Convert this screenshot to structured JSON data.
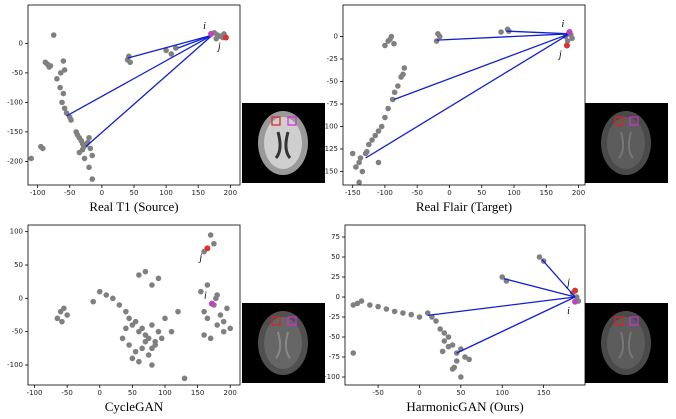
{
  "chart_data": [
    {
      "type": "scatter",
      "title": "Real T1 (Source)",
      "color": "#808080",
      "xlim": [
        -115,
        215
      ],
      "ylim": [
        -240,
        65
      ],
      "xticks": [
        -100,
        -50,
        0,
        50,
        100,
        150,
        200
      ],
      "yticks": [
        0,
        -50,
        -100,
        -150,
        -200
      ],
      "x": [
        -75,
        -88,
        -85,
        -82,
        -80,
        -70,
        -65,
        -60,
        -62,
        -58,
        -55,
        -50,
        -48,
        -40,
        -35,
        -32,
        -30,
        -28,
        -25,
        -22,
        -30,
        -35,
        -20,
        -18,
        -15,
        -38,
        -27,
        -110,
        -95,
        -92,
        -15,
        -20,
        40,
        42,
        44,
        100,
        108,
        115,
        175,
        180,
        185,
        190,
        178,
        188,
        -60,
        -58,
        -64
      ],
      "y": [
        14,
        -32,
        -35,
        -40,
        -38,
        -60,
        -75,
        -85,
        -100,
        -110,
        -118,
        -125,
        -130,
        -150,
        -160,
        -165,
        -170,
        -175,
        -172,
        -168,
        -180,
        -185,
        -160,
        -178,
        -190,
        -155,
        -195,
        -195,
        -175,
        -178,
        -230,
        -210,
        -28,
        -22,
        -32,
        -12,
        -18,
        -8,
        18,
        14,
        12,
        16,
        8,
        10,
        -30,
        -45,
        -50
      ],
      "links": [
        {
          "x": [
            172,
            40
          ],
          "y": [
            14,
            -25
          ]
        },
        {
          "x": [
            172,
            -55
          ],
          "y": [
            14,
            -123
          ]
        },
        {
          "x": [
            172,
            -25
          ],
          "y": [
            14,
            -175
          ]
        },
        {
          "x": [
            172,
            118
          ],
          "y": [
            14,
            -8
          ]
        }
      ],
      "highlights": [
        {
          "label": "i",
          "x": 170,
          "y": 16,
          "color": "#c040c0"
        },
        {
          "label": "j",
          "x": 193,
          "y": 10,
          "color": "#e03030"
        }
      ]
    },
    {
      "type": "scatter",
      "title": "Real Flair (Target)",
      "color": "#808080",
      "xlim": [
        -165,
        210
      ],
      "ylim": [
        -165,
        35
      ],
      "xticks": [
        -150,
        -100,
        -50,
        0,
        50,
        100,
        150,
        200
      ],
      "yticks": [
        0,
        -25,
        -50,
        -75,
        -100,
        -125,
        -150
      ],
      "x": [
        -100,
        -95,
        -90,
        -92,
        -86,
        -20,
        -15,
        -18,
        80,
        90,
        92,
        -70,
        -72,
        -75,
        -80,
        -85,
        -88,
        -95,
        -100,
        -105,
        -110,
        -115,
        -120,
        -125,
        -130,
        -140,
        -135,
        -145,
        -150,
        -138,
        -128,
        -110,
        -140,
        180,
        185,
        188,
        190,
        183
      ],
      "y": [
        -10,
        -5,
        0,
        -3,
        -8,
        -5,
        0,
        3,
        5,
        8,
        6,
        -35,
        -42,
        -45,
        -55,
        -62,
        -70,
        -80,
        -90,
        -100,
        -105,
        -110,
        -115,
        -120,
        -130,
        -140,
        -150,
        -145,
        -130,
        -135,
        -128,
        -140,
        -162,
        0,
        4,
        2,
        -2,
        -5
      ],
      "links": [
        {
          "x": [
            186,
            -20
          ],
          "y": [
            3,
            -4
          ]
        },
        {
          "x": [
            186,
            88
          ],
          "y": [
            3,
            6
          ]
        },
        {
          "x": [
            186,
            -86
          ],
          "y": [
            3,
            -70
          ]
        },
        {
          "x": [
            186,
            -130
          ],
          "y": [
            3,
            -135
          ]
        }
      ],
      "highlights": [
        {
          "label": "i",
          "x": 186,
          "y": 5,
          "color": "#c040c0"
        },
        {
          "label": "j",
          "x": 182,
          "y": -10,
          "color": "#e03030"
        }
      ]
    },
    {
      "type": "scatter",
      "title": "CycleGAN",
      "color": "#808080",
      "xlim": [
        -110,
        215
      ],
      "ylim": [
        -130,
        110
      ],
      "xticks": [
        -100,
        -50,
        0,
        50,
        100,
        150,
        200
      ],
      "yticks": [
        100,
        50,
        0,
        -50,
        -100
      ],
      "x": [
        170,
        175,
        160,
        -60,
        -65,
        -55,
        -50,
        -58,
        70,
        60,
        90,
        80,
        0,
        10,
        -10,
        20,
        30,
        40,
        45,
        50,
        55,
        60,
        65,
        70,
        75,
        80,
        85,
        90,
        35,
        45,
        55,
        65,
        75,
        85,
        95,
        50,
        60,
        70,
        80,
        40,
        100,
        110,
        120,
        130,
        80,
        155,
        160,
        165,
        175,
        180,
        185,
        190,
        195,
        170,
        165,
        180,
        190,
        200,
        160,
        178
      ],
      "y": [
        95,
        82,
        70,
        -20,
        -30,
        -15,
        -25,
        -35,
        40,
        35,
        30,
        20,
        10,
        5,
        -5,
        0,
        -10,
        -20,
        -30,
        -40,
        -35,
        -50,
        -45,
        -55,
        -60,
        -40,
        -65,
        -50,
        -60,
        -70,
        -80,
        -75,
        -85,
        -70,
        -60,
        -90,
        -95,
        -65,
        -75,
        -45,
        -30,
        -50,
        -20,
        -120,
        -100,
        10,
        -20,
        -30,
        -10,
        -40,
        -25,
        -50,
        -15,
        -60,
        20,
        5,
        -35,
        -45,
        -55,
        0
      ],
      "links": [],
      "highlights": [
        {
          "label": "i",
          "x": 172,
          "y": -8,
          "color": "#c040c0"
        },
        {
          "label": "j",
          "x": 165,
          "y": 75,
          "color": "#e03030"
        }
      ]
    },
    {
      "type": "scatter",
      "title": "HarmonicGAN (Ours)",
      "color": "#808080",
      "xlim": [
        -90,
        200
      ],
      "ylim": [
        -110,
        90
      ],
      "xticks": [
        -50,
        0,
        50,
        100,
        150
      ],
      "yticks": [
        75,
        50,
        25,
        0,
        -25,
        -50,
        -75,
        -100
      ],
      "x": [
        -80,
        -75,
        -70,
        -80,
        -60,
        -50,
        -40,
        -30,
        -20,
        -10,
        0,
        10,
        15,
        20,
        25,
        30,
        35,
        40,
        45,
        50,
        55,
        45,
        40,
        50,
        30,
        145,
        150,
        100,
        105,
        185,
        190,
        192,
        35,
        28,
        60,
        42
      ],
      "y": [
        -10,
        -8,
        -5,
        -70,
        -10,
        -12,
        -15,
        -18,
        -20,
        -22,
        -25,
        -20,
        -25,
        -30,
        -40,
        -45,
        -50,
        -60,
        -70,
        -65,
        -75,
        -80,
        -90,
        -100,
        -55,
        50,
        45,
        25,
        20,
        5,
        0,
        -5,
        -62,
        -68,
        -78,
        -88
      ],
      "links": [
        {
          "x": [
            188,
            10
          ],
          "y": [
            0,
            -23
          ]
        },
        {
          "x": [
            188,
            102
          ],
          "y": [
            0,
            23
          ]
        },
        {
          "x": [
            188,
            148
          ],
          "y": [
            0,
            47
          ]
        },
        {
          "x": [
            188,
            45
          ],
          "y": [
            0,
            -70
          ]
        }
      ],
      "highlights": [
        {
          "label": "j",
          "x": 188,
          "y": 8,
          "color": "#e03030"
        },
        {
          "label": "i",
          "x": 188,
          "y": -6,
          "color": "#c040c0"
        }
      ]
    }
  ]
}
